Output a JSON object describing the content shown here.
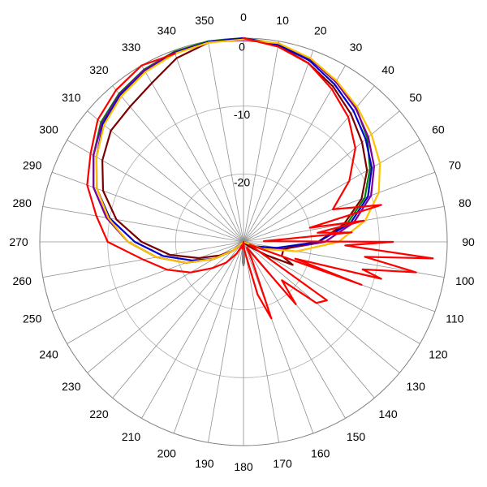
{
  "chart_data": {
    "type": "line",
    "coordinate_system": "polar",
    "title": "",
    "angle_direction": "clockwise",
    "zero_angle_position": "top",
    "angle_ticks": [
      0,
      10,
      20,
      30,
      40,
      50,
      60,
      70,
      80,
      90,
      100,
      110,
      120,
      130,
      140,
      150,
      160,
      170,
      180,
      190,
      200,
      210,
      220,
      230,
      240,
      250,
      260,
      270,
      280,
      290,
      300,
      310,
      320,
      330,
      340,
      350
    ],
    "angle_tick_labels": [
      "0",
      "10",
      "20",
      "30",
      "40",
      "50",
      "60",
      "70",
      "80",
      "90",
      "100",
      "110",
      "120",
      "130",
      "140",
      "150",
      "160",
      "170",
      "180",
      "190",
      "200",
      "210",
      "220",
      "230",
      "240",
      "250",
      "260",
      "270",
      "280",
      "290",
      "300",
      "310",
      "320",
      "330",
      "340",
      "350"
    ],
    "radial_range": [
      -30,
      0
    ],
    "radial_ticks": [
      0,
      -10,
      -20,
      -30
    ],
    "radial_tick_labels": [
      "0",
      "-10",
      "-20"
    ],
    "grid": true,
    "legend": "none",
    "series": [
      {
        "color": "#ff0000",
        "angles": [
          0,
          10,
          20,
          30,
          40,
          50,
          60,
          70,
          75,
          78,
          80,
          83,
          85,
          88,
          90,
          92,
          95,
          97,
          100,
          103,
          105,
          108,
          110,
          115,
          120,
          125,
          130,
          135,
          140,
          150,
          155,
          160,
          165,
          170,
          175,
          180,
          190,
          200,
          210,
          220,
          230,
          240,
          250,
          260,
          270,
          280,
          290,
          300,
          310,
          320,
          330,
          340,
          350
        ],
        "values": [
          0,
          -0.8,
          -2,
          -4,
          -6,
          -8.5,
          -12,
          -16,
          -9,
          -20,
          -12,
          -19,
          -14,
          -27,
          -8,
          -15,
          -2,
          -12,
          -4.2,
          -12,
          -9,
          -22,
          -11.5,
          -29,
          -28,
          -15,
          -16,
          -22,
          -18,
          -29,
          -27,
          -18,
          -22,
          -28,
          -29,
          -30,
          -29,
          -29.5,
          -28,
          -26,
          -24,
          -21,
          -18,
          -15,
          -10,
          -8,
          -5.5,
          -4,
          -2,
          -0.8,
          0,
          -0.5
        ]
      },
      {
        "color": "#0000cc",
        "angles": [
          0,
          10,
          20,
          30,
          40,
          50,
          60,
          70,
          80,
          90,
          100,
          110,
          120,
          150,
          180,
          210,
          230,
          240,
          250,
          260,
          270,
          280,
          290,
          300,
          310,
          320,
          330,
          340,
          350
        ],
        "values": [
          0,
          -0.5,
          -1.6,
          -3.2,
          -4.8,
          -6.5,
          -8.2,
          -10.5,
          -14,
          -19,
          -25,
          -28,
          -30,
          -30,
          -30,
          -30,
          -28,
          -25,
          -22,
          -18,
          -14,
          -10,
          -7,
          -5,
          -3,
          -1.8,
          -1,
          -0.4,
          -0.1
        ]
      },
      {
        "color": "#7a0000",
        "angles": [
          0,
          10,
          20,
          30,
          40,
          50,
          60,
          70,
          80,
          90,
          100,
          110,
          115,
          120,
          130,
          150,
          180,
          210,
          230,
          240,
          250,
          260,
          270,
          280,
          290,
          300,
          310,
          320,
          330,
          340,
          350
        ],
        "values": [
          0,
          -0.6,
          -2,
          -3.6,
          -5.4,
          -7.2,
          -9,
          -11.5,
          -15,
          -19,
          -24,
          -24,
          -22,
          -26,
          -29,
          -30,
          -30,
          -30,
          -28,
          -26,
          -23,
          -19,
          -15,
          -11,
          -8,
          -6,
          -4.5,
          -4,
          -3,
          -1.2,
          -0.2
        ]
      },
      {
        "color": "#8000a0",
        "angles": [
          0,
          10,
          20,
          30,
          40,
          50,
          60,
          70,
          80,
          90,
          100,
          110,
          120,
          150,
          180,
          210,
          230,
          240,
          250,
          260,
          270,
          280,
          290,
          300,
          310,
          320,
          330,
          340,
          350
        ],
        "values": [
          -0.3,
          -0.3,
          -1.3,
          -2.8,
          -4.3,
          -6,
          -7.8,
          -10,
          -13.5,
          -18,
          -24,
          -28,
          -30,
          -30,
          -30,
          -30,
          -28,
          -25,
          -21,
          -17,
          -13,
          -9.5,
          -6.5,
          -4.5,
          -2.8,
          -1.6,
          -0.8,
          -0.3,
          -0.1
        ]
      },
      {
        "color": "#008000",
        "angles": [
          0,
          10,
          20,
          30,
          40,
          50,
          60,
          70,
          80,
          90,
          100,
          110,
          120,
          150,
          180,
          210,
          230,
          240,
          250,
          260,
          270,
          280,
          290,
          300,
          310,
          320,
          330,
          340,
          350
        ],
        "values": [
          0,
          -0.4,
          -1.4,
          -2.6,
          -4.2,
          -6.2,
          -8.5,
          -11,
          -14.5,
          -19,
          -24,
          -28,
          -30,
          -30,
          -30,
          -30,
          -28,
          -25,
          -21,
          -17,
          -13,
          -9.5,
          -6.5,
          -4.5,
          -2.6,
          -1.5,
          -0.7,
          -0.2,
          0
        ]
      },
      {
        "color": "#ffc000",
        "angles": [
          0,
          10,
          20,
          30,
          40,
          50,
          60,
          70,
          80,
          90,
          100,
          110,
          120,
          150,
          180,
          210,
          230,
          240,
          250,
          260,
          270,
          280,
          290,
          300,
          310,
          320,
          330,
          340,
          350
        ],
        "values": [
          -0.2,
          -0.3,
          -1.2,
          -2.6,
          -4,
          -5.4,
          -6.8,
          -8.8,
          -11.8,
          -16,
          -22,
          -27,
          -30,
          -30,
          -30,
          -30,
          -28,
          -25,
          -21,
          -17,
          -13,
          -9.8,
          -7,
          -5,
          -3.2,
          -2,
          -1.1,
          -0.5,
          -0.2
        ]
      },
      {
        "color": "#808080",
        "angles": [
          0,
          90,
          170,
          175,
          178,
          180,
          182,
          185,
          190,
          270,
          360
        ],
        "values": [
          -30,
          -30,
          -30,
          -29,
          -27,
          -26.5,
          -27,
          -29,
          -30,
          -30,
          -30
        ]
      }
    ]
  }
}
